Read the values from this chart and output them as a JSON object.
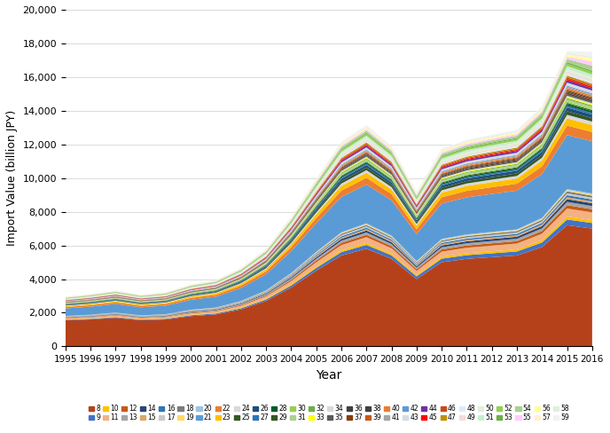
{
  "years": [
    1995,
    1996,
    1997,
    1998,
    1999,
    2000,
    2001,
    2002,
    2003,
    2004,
    2005,
    2006,
    2007,
    2008,
    2009,
    2010,
    2011,
    2012,
    2013,
    2014,
    2015,
    2016
  ],
  "categories": [
    "8",
    "9",
    "10",
    "11",
    "12",
    "13",
    "14",
    "15",
    "16",
    "17",
    "18",
    "19",
    "20",
    "21",
    "22",
    "23",
    "24",
    "25",
    "26",
    "27",
    "28",
    "29",
    "30",
    "31",
    "32",
    "33",
    "34",
    "35",
    "36",
    "37",
    "38",
    "39",
    "40",
    "41",
    "42",
    "43",
    "44",
    "45",
    "46",
    "47",
    "48",
    "49",
    "50",
    "51",
    "52",
    "53",
    "54",
    "55",
    "56",
    "57",
    "58",
    "59"
  ],
  "colors": [
    "#B8441A",
    "#4472C4",
    "#FFC000",
    "#F4B183",
    "#C55A11",
    "#A5A5A5",
    "#264478",
    "#D9A86C",
    "#2F75B6",
    "#C9C9C9",
    "#7B7B7B",
    "#FFD966",
    "#4472C4",
    "#ED7D31",
    "#70AD47",
    "#FFD700",
    "#9DC3E6",
    "#D6D6D6",
    "#375623",
    "#002060",
    "#1F4E79",
    "#2E75B6",
    "#005C29",
    "#375623",
    "#92D050",
    "#A9D18E",
    "#70AD47",
    "#FFFF00",
    "#D9D9D9",
    "#595959",
    "#404040",
    "#843C0C",
    "#404040",
    "#C55A11",
    "#ED7D31",
    "#A5A5A5",
    "#5A9BD5",
    "#D6DCE4",
    "#7030A0",
    "#FF0000",
    "#C9471A",
    "#BF8F00",
    "#DEEBF7",
    "#F2DCDB",
    "#E2EFDA",
    "#C6EFCE",
    "#92D050",
    "#70AD47",
    "#A9D18E",
    "#FFCCFF",
    "#FFFF99",
    "#FFF2CC"
  ],
  "series_data": {
    "8": [
      1550,
      1600,
      1700,
      1550,
      1600,
      1800,
      1900,
      2200,
      2700,
      3500,
      4500,
      5400,
      5800,
      5200,
      4000,
      5000,
      5200,
      5300,
      5400,
      5900,
      7200,
      7000
    ],
    "9": [
      30,
      35,
      40,
      38,
      40,
      50,
      55,
      65,
      85,
      120,
      160,
      200,
      230,
      210,
      160,
      210,
      220,
      230,
      240,
      270,
      340,
      330
    ],
    "10": [
      20,
      22,
      25,
      23,
      25,
      30,
      33,
      40,
      50,
      70,
      90,
      110,
      120,
      110,
      85,
      110,
      115,
      120,
      125,
      140,
      175,
      170
    ],
    "11": [
      60,
      65,
      70,
      65,
      70,
      85,
      90,
      110,
      140,
      190,
      250,
      310,
      340,
      310,
      240,
      310,
      325,
      335,
      345,
      385,
      475,
      460
    ],
    "12": [
      25,
      27,
      30,
      28,
      30,
      36,
      39,
      47,
      59,
      80,
      104,
      128,
      139,
      127,
      99,
      128,
      134,
      138,
      142,
      158,
      196,
      190
    ],
    "13": [
      25,
      27,
      30,
      28,
      30,
      36,
      39,
      47,
      59,
      80,
      104,
      128,
      139,
      127,
      99,
      128,
      134,
      138,
      142,
      158,
      196,
      190
    ],
    "14": [
      20,
      22,
      25,
      23,
      25,
      30,
      33,
      40,
      50,
      68,
      88,
      109,
      118,
      108,
      84,
      109,
      114,
      118,
      121,
      135,
      167,
      162
    ],
    "15": [
      15,
      16,
      18,
      17,
      18,
      21,
      23,
      28,
      35,
      48,
      62,
      76,
      82,
      75,
      58,
      75,
      79,
      82,
      84,
      94,
      116,
      112
    ],
    "16": [
      15,
      16,
      18,
      17,
      18,
      21,
      23,
      28,
      35,
      48,
      62,
      76,
      82,
      75,
      58,
      75,
      79,
      82,
      84,
      94,
      116,
      112
    ],
    "17": [
      15,
      16,
      18,
      17,
      18,
      21,
      23,
      28,
      35,
      48,
      62,
      76,
      82,
      75,
      58,
      75,
      79,
      82,
      84,
      94,
      116,
      112
    ],
    "18": [
      15,
      16,
      18,
      17,
      18,
      21,
      23,
      28,
      35,
      48,
      62,
      76,
      82,
      75,
      58,
      75,
      79,
      82,
      84,
      94,
      116,
      112
    ],
    "19": [
      10,
      11,
      12,
      11,
      12,
      14,
      16,
      19,
      24,
      32,
      41,
      51,
      55,
      50,
      39,
      50,
      53,
      54,
      56,
      62,
      77,
      75
    ],
    "20": [
      8,
      9,
      10,
      9,
      10,
      12,
      13,
      15,
      19,
      26,
      34,
      41,
      44,
      40,
      31,
      40,
      42,
      44,
      45,
      50,
      62,
      60
    ],
    "21": [
      450,
      480,
      510,
      480,
      510,
      590,
      640,
      770,
      960,
      1300,
      1700,
      2100,
      2300,
      2100,
      1600,
      2100,
      2200,
      2250,
      2300,
      2600,
      3200,
      3100
    ],
    "22": [
      80,
      85,
      90,
      85,
      90,
      105,
      114,
      137,
      171,
      232,
      301,
      372,
      403,
      368,
      286,
      371,
      389,
      401,
      411,
      459,
      568,
      550
    ],
    "23": [
      60,
      64,
      68,
      64,
      68,
      79,
      85,
      103,
      128,
      174,
      226,
      279,
      302,
      276,
      214,
      278,
      291,
      300,
      308,
      344,
      426,
      413
    ],
    "24": [
      30,
      32,
      34,
      32,
      34,
      39,
      43,
      51,
      64,
      87,
      113,
      140,
      151,
      138,
      107,
      139,
      146,
      150,
      154,
      172,
      213,
      206
    ],
    "25": [
      30,
      32,
      34,
      32,
      34,
      39,
      43,
      51,
      64,
      87,
      113,
      140,
      151,
      138,
      107,
      139,
      146,
      150,
      154,
      172,
      213,
      206
    ],
    "26": [
      30,
      32,
      34,
      32,
      34,
      39,
      43,
      51,
      64,
      87,
      113,
      140,
      151,
      138,
      107,
      139,
      146,
      150,
      154,
      172,
      213,
      206
    ],
    "27": [
      15,
      16,
      17,
      16,
      17,
      20,
      21,
      26,
      32,
      44,
      57,
      70,
      76,
      69,
      54,
      70,
      73,
      75,
      77,
      86,
      106,
      103
    ],
    "28": [
      15,
      16,
      17,
      16,
      17,
      20,
      21,
      26,
      32,
      44,
      57,
      70,
      76,
      69,
      54,
      70,
      73,
      75,
      77,
      86,
      106,
      103
    ],
    "29": [
      10,
      11,
      11,
      11,
      11,
      13,
      14,
      17,
      21,
      29,
      37,
      46,
      50,
      46,
      36,
      46,
      48,
      50,
      51,
      57,
      71,
      68
    ],
    "30": [
      10,
      11,
      11,
      11,
      11,
      13,
      14,
      17,
      21,
      29,
      37,
      46,
      50,
      46,
      36,
      46,
      48,
      50,
      51,
      57,
      71,
      68
    ],
    "31": [
      20,
      21,
      23,
      21,
      23,
      26,
      28,
      34,
      43,
      58,
      75,
      93,
      100,
      91,
      71,
      92,
      97,
      100,
      102,
      114,
      141,
      137
    ],
    "32": [
      10,
      11,
      11,
      11,
      11,
      13,
      14,
      17,
      21,
      29,
      37,
      46,
      50,
      46,
      36,
      46,
      48,
      50,
      51,
      57,
      71,
      68
    ],
    "33": [
      10,
      11,
      11,
      11,
      11,
      13,
      14,
      17,
      21,
      29,
      37,
      46,
      50,
      46,
      36,
      46,
      48,
      50,
      51,
      57,
      71,
      68
    ],
    "34": [
      10,
      11,
      11,
      11,
      11,
      13,
      14,
      17,
      21,
      29,
      37,
      46,
      50,
      46,
      36,
      46,
      48,
      50,
      51,
      57,
      71,
      68
    ],
    "35": [
      12,
      13,
      14,
      13,
      14,
      16,
      17,
      21,
      26,
      35,
      46,
      56,
      61,
      56,
      43,
      56,
      59,
      61,
      62,
      69,
      86,
      83
    ],
    "36": [
      12,
      13,
      14,
      13,
      14,
      16,
      17,
      21,
      26,
      35,
      46,
      56,
      61,
      56,
      43,
      56,
      59,
      61,
      62,
      69,
      86,
      83
    ],
    "37": [
      10,
      11,
      11,
      11,
      11,
      13,
      14,
      17,
      21,
      29,
      37,
      46,
      50,
      46,
      36,
      46,
      48,
      50,
      51,
      57,
      71,
      68
    ],
    "38": [
      10,
      11,
      11,
      11,
      11,
      13,
      14,
      17,
      21,
      29,
      37,
      46,
      50,
      46,
      36,
      46,
      48,
      50,
      51,
      57,
      71,
      68
    ],
    "39": [
      10,
      11,
      11,
      11,
      11,
      13,
      14,
      17,
      21,
      29,
      37,
      46,
      50,
      46,
      36,
      46,
      48,
      50,
      51,
      57,
      71,
      68
    ],
    "40": [
      12,
      13,
      14,
      13,
      14,
      16,
      17,
      21,
      26,
      35,
      46,
      56,
      61,
      56,
      43,
      56,
      59,
      61,
      62,
      69,
      86,
      83
    ],
    "41": [
      10,
      11,
      11,
      11,
      11,
      13,
      14,
      17,
      21,
      29,
      37,
      46,
      50,
      46,
      36,
      46,
      48,
      50,
      51,
      57,
      71,
      68
    ],
    "42": [
      8,
      9,
      9,
      9,
      9,
      10,
      11,
      14,
      17,
      23,
      30,
      37,
      40,
      36,
      28,
      37,
      39,
      40,
      41,
      46,
      57,
      55
    ],
    "43": [
      25,
      27,
      29,
      27,
      29,
      33,
      36,
      43,
      54,
      73,
      95,
      118,
      127,
      116,
      90,
      117,
      123,
      126,
      130,
      145,
      179,
      173
    ],
    "44": [
      20,
      21,
      23,
      21,
      23,
      26,
      28,
      34,
      43,
      58,
      75,
      93,
      100,
      91,
      71,
      92,
      97,
      100,
      102,
      114,
      141,
      137
    ],
    "45": [
      12,
      13,
      14,
      13,
      14,
      16,
      17,
      21,
      26,
      35,
      46,
      56,
      61,
      56,
      43,
      56,
      59,
      61,
      62,
      69,
      86,
      83
    ],
    "46": [
      12,
      13,
      14,
      13,
      14,
      16,
      17,
      21,
      26,
      35,
      46,
      56,
      61,
      56,
      43,
      56,
      59,
      61,
      62,
      69,
      86,
      83
    ],
    "47": [
      15,
      16,
      17,
      16,
      17,
      20,
      21,
      26,
      32,
      44,
      57,
      70,
      76,
      69,
      54,
      70,
      73,
      75,
      77,
      86,
      106,
      103
    ],
    "48": [
      15,
      16,
      17,
      16,
      17,
      20,
      21,
      26,
      32,
      44,
      57,
      70,
      76,
      69,
      54,
      70,
      73,
      75,
      77,
      86,
      106,
      103
    ],
    "49": [
      20,
      21,
      23,
      21,
      23,
      26,
      28,
      34,
      43,
      58,
      75,
      93,
      100,
      91,
      71,
      92,
      97,
      100,
      102,
      114,
      141,
      137
    ],
    "50": [
      20,
      21,
      23,
      21,
      23,
      26,
      28,
      34,
      43,
      58,
      75,
      93,
      100,
      91,
      71,
      92,
      97,
      100,
      102,
      114,
      141,
      137
    ],
    "51": [
      25,
      27,
      29,
      27,
      29,
      33,
      36,
      43,
      54,
      73,
      95,
      118,
      127,
      116,
      90,
      117,
      123,
      126,
      130,
      145,
      179,
      173
    ],
    "52": [
      20,
      21,
      23,
      21,
      23,
      26,
      28,
      34,
      43,
      58,
      75,
      93,
      100,
      91,
      71,
      92,
      97,
      100,
      102,
      114,
      141,
      137
    ],
    "53": [
      12,
      13,
      14,
      13,
      14,
      16,
      17,
      21,
      26,
      35,
      46,
      56,
      61,
      56,
      43,
      56,
      59,
      61,
      62,
      69,
      86,
      83
    ],
    "54": [
      25,
      27,
      29,
      27,
      29,
      33,
      36,
      43,
      54,
      73,
      95,
      118,
      127,
      116,
      90,
      117,
      123,
      126,
      130,
      145,
      179,
      300
    ],
    "55": [
      20,
      21,
      23,
      21,
      23,
      26,
      28,
      34,
      43,
      58,
      75,
      93,
      100,
      91,
      71,
      92,
      97,
      100,
      102,
      114,
      141,
      250
    ],
    "56": [
      12,
      13,
      14,
      13,
      14,
      16,
      17,
      21,
      26,
      35,
      46,
      56,
      61,
      56,
      43,
      56,
      59,
      61,
      62,
      69,
      86,
      150
    ],
    "57": [
      10,
      11,
      11,
      11,
      11,
      13,
      14,
      17,
      21,
      29,
      37,
      46,
      50,
      46,
      36,
      46,
      48,
      50,
      51,
      57,
      71,
      68
    ],
    "58": [
      10,
      11,
      11,
      11,
      11,
      13,
      14,
      17,
      21,
      29,
      37,
      46,
      50,
      46,
      36,
      46,
      48,
      50,
      51,
      57,
      71,
      68
    ],
    "59": [
      15,
      16,
      17,
      16,
      17,
      20,
      21,
      26,
      32,
      44,
      57,
      70,
      76,
      69,
      54,
      70,
      73,
      75,
      77,
      86,
      106,
      300
    ]
  },
  "xlabel": "Year",
  "ylabel": "Import Value (billion JPY)",
  "ylim": [
    0,
    20000
  ],
  "yticks": [
    0,
    2000,
    4000,
    6000,
    8000,
    10000,
    12000,
    14000,
    16000,
    18000,
    20000
  ]
}
